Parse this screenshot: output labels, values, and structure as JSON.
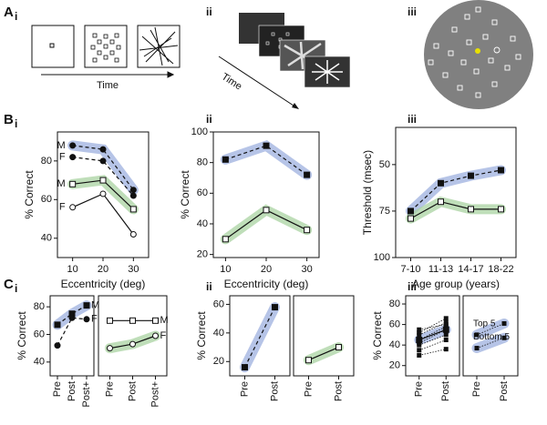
{
  "panel_labels": [
    "A",
    "i",
    "ii",
    "iii",
    "B",
    "i",
    "ii",
    "iii",
    "C",
    "i",
    "ii",
    "iii"
  ],
  "schematic": {
    "time_a1": "Time",
    "time_a2": "Time"
  },
  "chart_data": [
    {
      "type": "line",
      "xlabel": "Eccentricity (deg)",
      "ylabel": "% Correct",
      "x": [
        10,
        20,
        30
      ],
      "xlim": [
        5,
        35
      ],
      "xticks": [
        10,
        20,
        30
      ],
      "ylim": [
        30,
        95
      ],
      "yticks": [
        40,
        60,
        80
      ],
      "series": [
        {
          "name": "M",
          "marker": "circle-filled",
          "dash": true,
          "band": "#9db0df",
          "values": [
            88,
            86,
            65
          ]
        },
        {
          "name": "F",
          "marker": "circle-filled",
          "dash": true,
          "values": [
            82,
            80,
            62
          ]
        },
        {
          "name": "M",
          "marker": "square-open",
          "dash": false,
          "band": "#a9d3a1",
          "values": [
            68,
            70,
            55
          ]
        },
        {
          "name": "F",
          "marker": "circle-open",
          "dash": false,
          "values": [
            56,
            63,
            42
          ]
        }
      ]
    },
    {
      "type": "line",
      "xlabel": "Eccentricity (deg)",
      "ylabel": "% Correct",
      "x": [
        10,
        20,
        30
      ],
      "xlim": [
        7,
        33
      ],
      "xticks": [
        10,
        20,
        30
      ],
      "ylim": [
        18,
        100
      ],
      "yticks": [
        20,
        40,
        60,
        80,
        100
      ],
      "series": [
        {
          "marker": "square-filled",
          "dash": true,
          "band": "#9db0df",
          "values": [
            82,
            91,
            72
          ]
        },
        {
          "marker": "square-open",
          "dash": false,
          "band": "#a9d3a1",
          "values": [
            30,
            49,
            36
          ]
        }
      ]
    },
    {
      "type": "line",
      "xlabel": "Age group (years)",
      "ylabel": "Threshold (msec)",
      "categories": [
        "7-10",
        "11-13",
        "14-17",
        "18-22"
      ],
      "ylim": [
        100,
        30
      ],
      "yticks": [
        50,
        75,
        100
      ],
      "series": [
        {
          "marker": "square-filled",
          "dash": true,
          "band": "#9db0df",
          "values": [
            75,
            60,
            56,
            53
          ]
        },
        {
          "marker": "square-open",
          "dash": false,
          "band": "#a9d3a1",
          "values": [
            79,
            70,
            74,
            74
          ]
        }
      ]
    },
    {
      "type": "line",
      "ylabel": "% Correct",
      "categories": [
        "Pre",
        "Post",
        "Post+"
      ],
      "ylim": [
        30,
        88
      ],
      "yticks": [
        40,
        60,
        80
      ],
      "series": [
        {
          "name": "M",
          "marker": "square-filled",
          "dash": true,
          "band": "#9db0df",
          "values": [
            67,
            75,
            81
          ]
        },
        {
          "name": "F",
          "marker": "circle-filled",
          "dash": true,
          "values": [
            52,
            72,
            71
          ]
        }
      ]
    },
    {
      "type": "line",
      "categories": [
        "Pre",
        "Post",
        "Post+"
      ],
      "ylim": [
        30,
        88
      ],
      "series": [
        {
          "name": "M",
          "marker": "square-open",
          "dash": false,
          "values": [
            70,
            70,
            70
          ]
        },
        {
          "name": "F",
          "marker": "circle-open",
          "dash": false,
          "band": "#a9d3a1",
          "values": [
            50,
            53,
            59
          ]
        }
      ]
    },
    {
      "type": "line",
      "ylabel": "% Correct",
      "categories": [
        "Pre",
        "Post"
      ],
      "ylim": [
        10,
        66
      ],
      "yticks": [
        20,
        40,
        60
      ],
      "series": [
        {
          "marker": "square-filled",
          "dash": true,
          "band": "#9db0df",
          "values": [
            16,
            58
          ]
        }
      ]
    },
    {
      "type": "line",
      "categories": [
        "Pre",
        "Post"
      ],
      "ylim": [
        10,
        66
      ],
      "series": [
        {
          "marker": "square-open",
          "dash": false,
          "band": "#a9d3a1",
          "values": [
            21,
            30
          ]
        }
      ]
    },
    {
      "type": "line",
      "ylabel": "% Correct",
      "categories": [
        "Pre",
        "Post"
      ],
      "ylim": [
        10,
        88
      ],
      "yticks": [
        20,
        40,
        60,
        80
      ],
      "series": [
        {
          "marker": "square-filled",
          "dotted": true,
          "values": [
            30,
            36
          ]
        },
        {
          "marker": "square-filled",
          "dotted": true,
          "values": [
            35,
            45
          ]
        },
        {
          "marker": "square-filled",
          "dotted": true,
          "values": [
            40,
            50
          ]
        },
        {
          "marker": "square-filled",
          "dotted": true,
          "values": [
            45,
            58
          ]
        },
        {
          "marker": "square-filled",
          "dotted": true,
          "values": [
            50,
            62
          ]
        },
        {
          "marker": "square-filled",
          "dotted": true,
          "values": [
            55,
            60
          ]
        },
        {
          "marker": "square-filled",
          "dotted": true,
          "values": [
            42,
            55
          ]
        },
        {
          "marker": "square-filled",
          "dotted": true,
          "values": [
            52,
            66
          ]
        },
        {
          "marker": "square-filled",
          "dotted": false,
          "band": "#9db0df",
          "values": [
            45,
            55
          ]
        }
      ]
    },
    {
      "type": "line",
      "categories": [
        "Pre",
        "Post"
      ],
      "ylim": [
        10,
        88
      ],
      "series": [
        {
          "name": "Top 5",
          "marker": "square-filled",
          "dotted": true,
          "band": "#9db0df",
          "values": [
            50,
            61
          ]
        },
        {
          "name": "Bottom 5",
          "marker": "square-filled",
          "dotted": true,
          "band": "#9db0df",
          "values": [
            37,
            47
          ]
        }
      ]
    }
  ]
}
